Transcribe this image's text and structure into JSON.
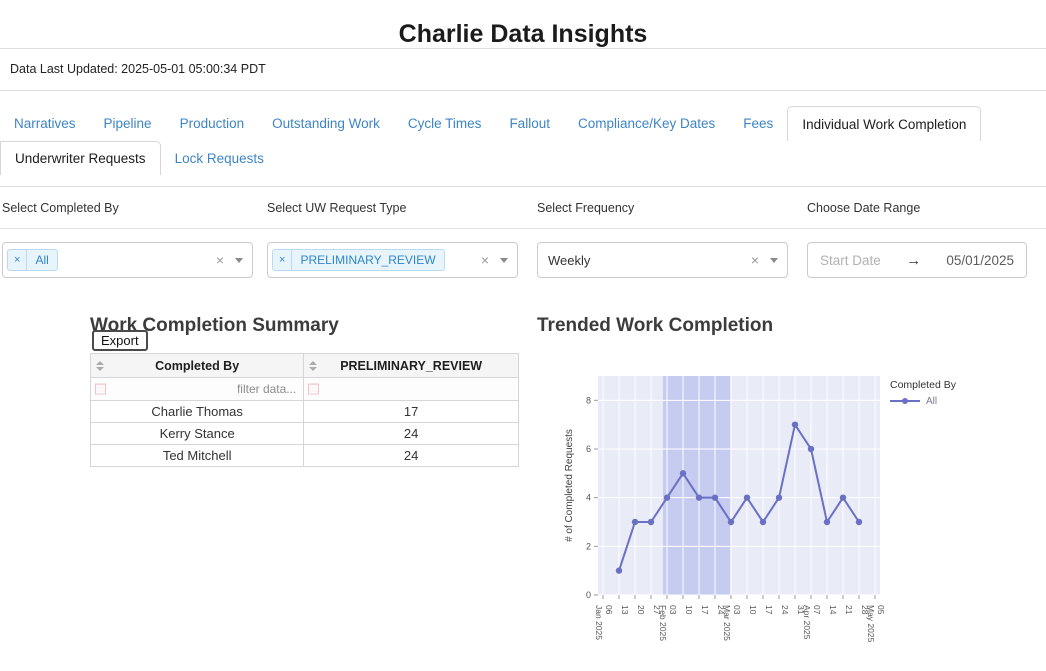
{
  "header": {
    "title": "Charlie Data Insights",
    "last_updated": "Data Last Updated: 2025-05-01 05:00:34 PDT"
  },
  "tabs": {
    "primary": [
      {
        "label": "Narratives",
        "active": false
      },
      {
        "label": "Pipeline",
        "active": false
      },
      {
        "label": "Production",
        "active": false
      },
      {
        "label": "Outstanding Work",
        "active": false
      },
      {
        "label": "Cycle Times",
        "active": false
      },
      {
        "label": "Fallout",
        "active": false
      },
      {
        "label": "Compliance/Key Dates",
        "active": false
      },
      {
        "label": "Fees",
        "active": false
      },
      {
        "label": "Individual Work Completion",
        "active": true
      }
    ],
    "secondary": [
      {
        "label": "Underwriter Requests",
        "active": true
      },
      {
        "label": "Lock Requests",
        "active": false
      }
    ]
  },
  "icons": {
    "chip_remove": "×",
    "clear": "×",
    "date_arrow": "→"
  },
  "filters": {
    "completed_by": {
      "label": "Select Completed By",
      "chips": [
        "All"
      ]
    },
    "uw_request_type": {
      "label": "Select UW Request Type",
      "chips": [
        "PRELIMINARY_REVIEW"
      ]
    },
    "frequency": {
      "label": "Select Frequency",
      "value": "Weekly"
    },
    "date_range": {
      "label": "Choose Date Range",
      "start_placeholder": "Start Date",
      "end_value": "05/01/2025"
    }
  },
  "summary": {
    "title": "Work Completion Summary",
    "export_label": "Export",
    "table": {
      "columns": [
        "Completed By",
        "PRELIMINARY_REVIEW"
      ],
      "filter_placeholder": "filter data...",
      "rows": [
        [
          "Charlie Thomas",
          "17"
        ],
        [
          "Kerry Stance",
          "24"
        ],
        [
          "Ted Mitchell",
          "24"
        ]
      ]
    }
  },
  "trended": {
    "title": "Trended Work Completion"
  },
  "chart_data": {
    "type": "line",
    "title": "Trended Work Completion",
    "xlabel": "",
    "ylabel": "# of Completed Requests",
    "ylim": [
      0,
      9
    ],
    "y_ticks": [
      0,
      2,
      4,
      6,
      8
    ],
    "grid": true,
    "x_tick_labels": [
      [
        "06",
        "Jan 2025"
      ],
      [
        "13"
      ],
      [
        "20"
      ],
      [
        "27"
      ],
      [
        "03",
        "Feb 2025"
      ],
      [
        "10"
      ],
      [
        "17"
      ],
      [
        "24"
      ],
      [
        "03",
        "Mar 2025"
      ],
      [
        "10"
      ],
      [
        "17"
      ],
      [
        "24"
      ],
      [
        "31"
      ],
      [
        "07",
        "Apr 2025"
      ],
      [
        "14"
      ],
      [
        "21"
      ],
      [
        "28"
      ],
      [
        "05",
        "May 2025"
      ]
    ],
    "series": [
      {
        "name": "All",
        "start_tick_index": 1,
        "x_dates": [
          "2025-01-13",
          "2025-01-20",
          "2025-01-27",
          "2025-02-03",
          "2025-02-10",
          "2025-02-17",
          "2025-02-24",
          "2025-03-03",
          "2025-03-10",
          "2025-03-17",
          "2025-03-24",
          "2025-03-31",
          "2025-04-07",
          "2025-04-14",
          "2025-04-21",
          "2025-04-28"
        ],
        "values": [
          1,
          3,
          3,
          4,
          5,
          4,
          4,
          3,
          4,
          3,
          4,
          7,
          6,
          3,
          4,
          3
        ]
      }
    ],
    "highlight_band": {
      "from_tick": 3.75,
      "to_tick": 7.95
    },
    "legend": {
      "title": "Completed By",
      "position": "right"
    },
    "colors": {
      "line": "#6a70c4",
      "plot_bg": "#e9ebf6",
      "band": "#c6cbf0",
      "grid": "#ffffff"
    }
  }
}
